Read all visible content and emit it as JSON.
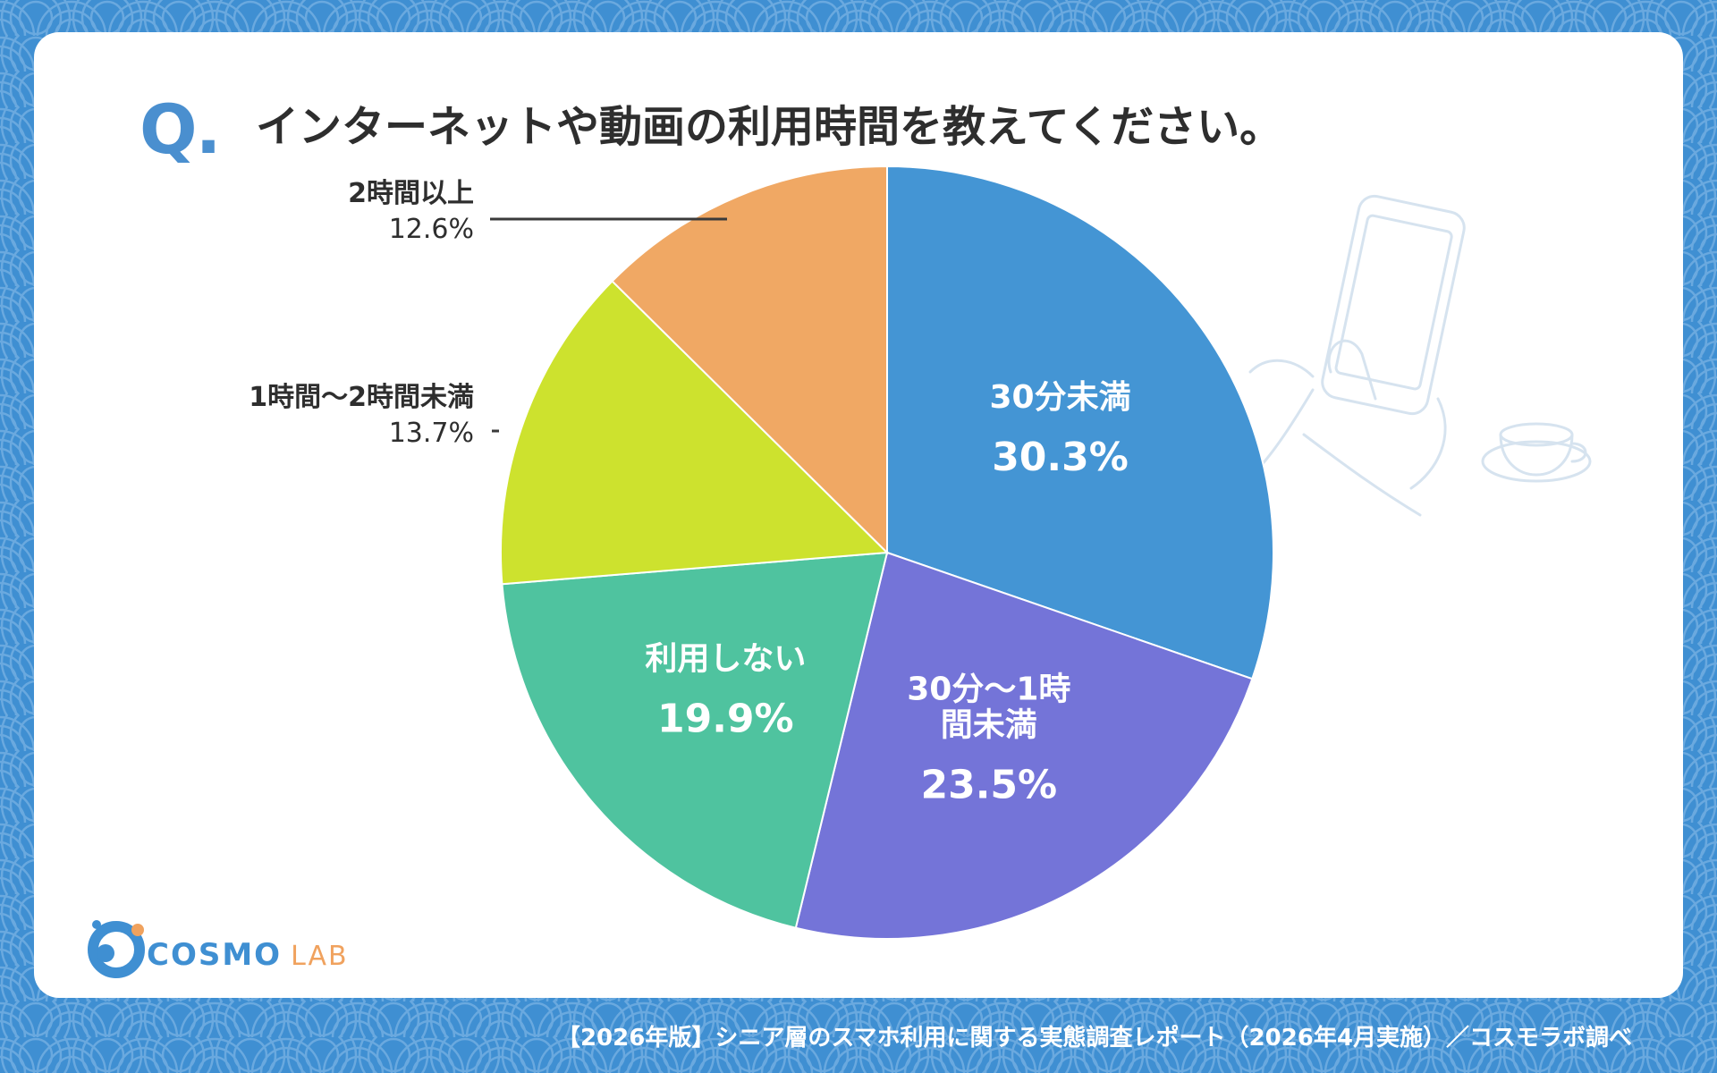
{
  "header": {
    "q_mark": "Q.",
    "question": "インターネットや動画の利用時間を教えてください。"
  },
  "chart_data": {
    "type": "pie",
    "title": "インターネットや動画の利用時間を教えてください。",
    "slices": [
      {
        "label": "30分未満",
        "value": 30.3,
        "display": "30.3%",
        "color": "#4495d4",
        "label_position": "inside"
      },
      {
        "label": "30分〜1時間未満",
        "label_lines": [
          "30分〜1時",
          "間未満"
        ],
        "value": 23.5,
        "display": "23.5%",
        "color": "#7474d8",
        "label_position": "inside"
      },
      {
        "label": "利用しない",
        "value": 19.9,
        "display": "19.9%",
        "color": "#4fc39f",
        "label_position": "inside"
      },
      {
        "label": "1時間〜2時間未満",
        "value": 13.7,
        "display": "13.7%",
        "color": "#cde22e",
        "label_position": "outside"
      },
      {
        "label": "2時間以上",
        "value": 12.6,
        "display": "12.6%",
        "color": "#f0a864",
        "label_position": "outside"
      }
    ],
    "start": "top",
    "direction": "clockwise"
  },
  "branding": {
    "logo_main": "COSMO",
    "logo_sub": "LAB"
  },
  "footer": {
    "source": "【2026年版】シニア層のスマホ利用に関する実態調査レポート（2026年4月実施）／コスモラボ調べ"
  },
  "colors": {
    "background": "#3f8fd2",
    "card": "#ffffff",
    "accent": "#4a8fcf",
    "text": "#2e2e2e"
  }
}
